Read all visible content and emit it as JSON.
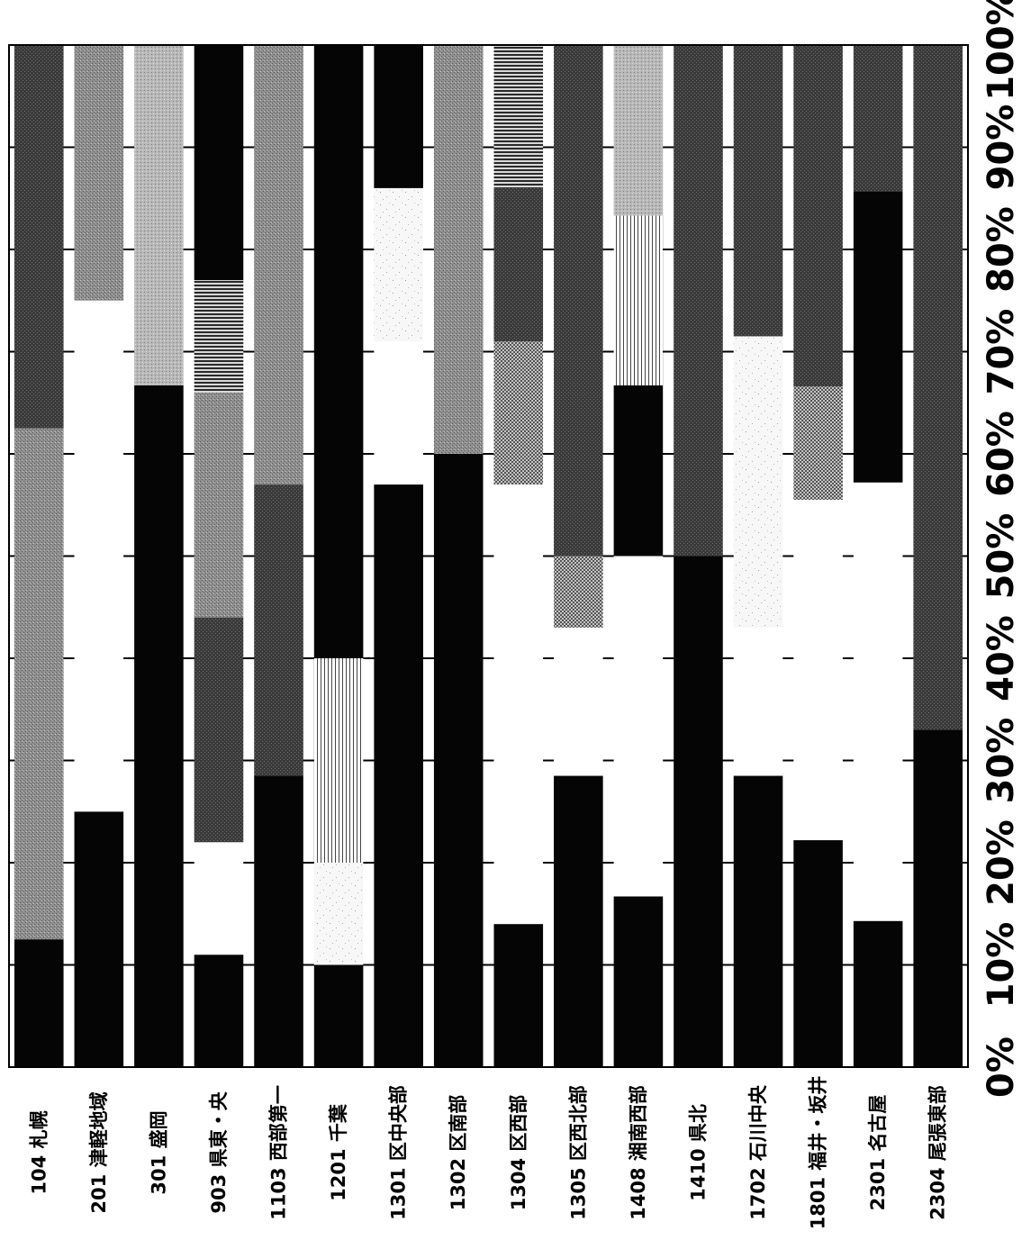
{
  "chart_data": {
    "type": "bar",
    "orientation": "horizontal",
    "stacked": true,
    "percent_stacked": true,
    "categories": [
      "104 札幌",
      "201 津軽地域",
      "301 盛岡",
      "903 県東・央",
      "1103 西部第一",
      "1201 千葉",
      "1301 区中央部",
      "1302 区南部",
      "1304 区西部",
      "1305 区西北部",
      "1408 湘南西部",
      "1410 県北",
      "1702 石川中央",
      "1801 福井・坂井",
      "2301 名古屋",
      "2304 尾張東部"
    ],
    "segments": [
      [
        {
          "value": 12.5,
          "fill": "black"
        },
        {
          "value": 50,
          "fill": "gray"
        },
        {
          "value": 37.5,
          "fill": "dark"
        }
      ],
      [
        {
          "value": 25,
          "fill": "black"
        },
        {
          "value": 50,
          "fill": "white"
        },
        {
          "value": 25,
          "fill": "gray"
        }
      ],
      [
        {
          "value": 66.7,
          "fill": "black"
        },
        {
          "value": 33.3,
          "fill": "lightgray"
        }
      ],
      [
        {
          "value": 11,
          "fill": "black"
        },
        {
          "value": 11,
          "fill": "white"
        },
        {
          "value": 22,
          "fill": "dark"
        },
        {
          "value": 22,
          "fill": "gray"
        },
        {
          "value": 11,
          "fill": "hstripe"
        },
        {
          "value": 23,
          "fill": "black"
        }
      ],
      [
        {
          "value": 28.5,
          "fill": "black"
        },
        {
          "value": 28.5,
          "fill": "dark"
        },
        {
          "value": 43,
          "fill": "gray"
        }
      ],
      [
        {
          "value": 10,
          "fill": "black"
        },
        {
          "value": 10,
          "fill": "speckle"
        },
        {
          "value": 20,
          "fill": "vstripe"
        },
        {
          "value": 60,
          "fill": "black"
        }
      ],
      [
        {
          "value": 57,
          "fill": "black"
        },
        {
          "value": 14,
          "fill": "white"
        },
        {
          "value": 15,
          "fill": "speckle"
        },
        {
          "value": 14,
          "fill": "black"
        }
      ],
      [
        {
          "value": 60,
          "fill": "black"
        },
        {
          "value": 40,
          "fill": "gray"
        }
      ],
      [
        {
          "value": 14,
          "fill": "black"
        },
        {
          "value": 43,
          "fill": "white"
        },
        {
          "value": 14,
          "fill": "checker"
        },
        {
          "value": 15,
          "fill": "dark"
        },
        {
          "value": 14,
          "fill": "hstripe"
        }
      ],
      [
        {
          "value": 28.5,
          "fill": "black"
        },
        {
          "value": 14.5,
          "fill": "white"
        },
        {
          "value": 7,
          "fill": "checker"
        },
        {
          "value": 50,
          "fill": "dark"
        }
      ],
      [
        {
          "value": 16.7,
          "fill": "black"
        },
        {
          "value": 33.3,
          "fill": "white"
        },
        {
          "value": 16.7,
          "fill": "black"
        },
        {
          "value": 16.6,
          "fill": "vstripe"
        },
        {
          "value": 16.7,
          "fill": "lightgray"
        }
      ],
      [
        {
          "value": 50,
          "fill": "black"
        },
        {
          "value": 50,
          "fill": "dark"
        }
      ],
      [
        {
          "value": 28.5,
          "fill": "black"
        },
        {
          "value": 14.5,
          "fill": "white"
        },
        {
          "value": 28.5,
          "fill": "speckle"
        },
        {
          "value": 28.5,
          "fill": "dark"
        }
      ],
      [
        {
          "value": 22.2,
          "fill": "black"
        },
        {
          "value": 33.3,
          "fill": "white"
        },
        {
          "value": 11.1,
          "fill": "checker"
        },
        {
          "value": 33.4,
          "fill": "dark"
        }
      ],
      [
        {
          "value": 14.3,
          "fill": "black"
        },
        {
          "value": 42.9,
          "fill": "white"
        },
        {
          "value": 28.5,
          "fill": "black"
        },
        {
          "value": 14.3,
          "fill": "dark"
        }
      ],
      [
        {
          "value": 33,
          "fill": "black"
        },
        {
          "value": 67,
          "fill": "dark"
        }
      ]
    ],
    "x_ticks": [
      "0%",
      "10%",
      "20%",
      "30%",
      "40%",
      "50%",
      "60%",
      "70%",
      "80%",
      "90%",
      "100%"
    ],
    "xlim": [
      0,
      100
    ],
    "grid": true,
    "legend": "none",
    "fill_colors": {
      "black": "#050505",
      "white": "#ffffff",
      "gray": "#8a8a8a",
      "dark": "#3c3c3c",
      "lightgray": "#b4b4b4",
      "hstripe": "#6a6a6a",
      "vstripe": "#f2f2f2",
      "speckle": "#f4f4f4",
      "checker": "#9a9a9a"
    }
  }
}
